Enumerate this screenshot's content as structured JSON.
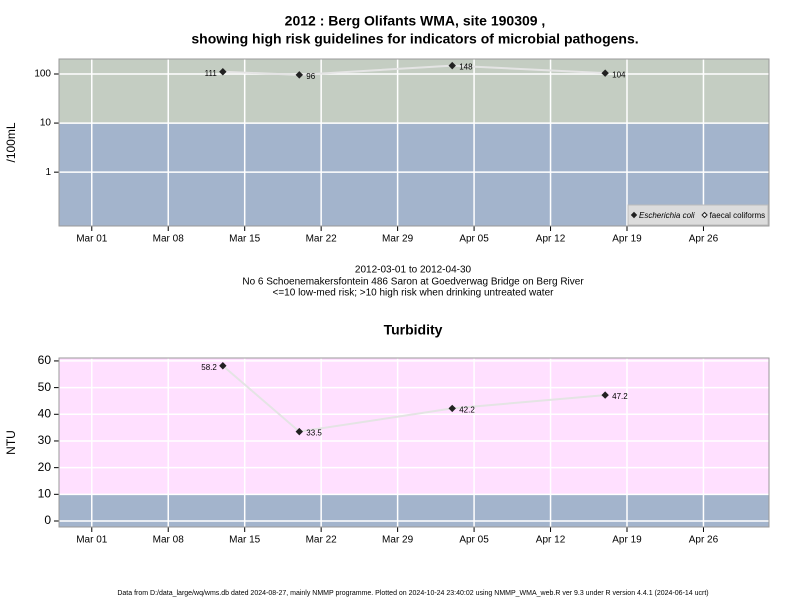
{
  "title": [
    "2012 : Berg Olifants WMA, site 190309 ,",
    "showing high risk guidelines for indicators of microbial pathogens."
  ],
  "notes": [
    "2012-03-01 to 2012-04-30",
    "No 6 Schoenemakersfontein 486 Saron at Goedverwag Bridge on Berg River",
    "<=10 low-med risk; >10 high risk when drinking untreated water"
  ],
  "footer": "Data from D:/data_large/wq/wms.db dated 2024-08-27, mainly NMMP programme. Plotted on 2024-10-24 23:40:02 using NMMP_WMA_web.R ver 9.3 under R version 4.4.1 (2024-06-14 ucrt)",
  "chart_data": [
    {
      "type": "line",
      "y_label": "/100mL",
      "log_scale": true,
      "grid": true,
      "legend": "bottom-right",
      "threshold": 10,
      "above_color": "#c4cdc2",
      "below_color": "#a3b4cc",
      "x": [
        "2012-03-13",
        "2012-03-20",
        "2012-04-03",
        "2012-04-17"
      ],
      "series": [
        {
          "name": "Escherichia coli",
          "color": "#222222",
          "values": [
            111,
            96,
            148,
            104
          ]
        },
        {
          "name": "faecal coliforms",
          "color": "#222222",
          "values": [
            null,
            null,
            null,
            null
          ]
        }
      ],
      "xlim": [
        "2012-02-27",
        "2012-05-02"
      ],
      "xticks": [
        {
          "value": "2012-03-01",
          "label": "Mar 01"
        },
        {
          "value": "2012-03-08",
          "label": "Mar 08"
        },
        {
          "value": "2012-03-15",
          "label": "Mar 15"
        },
        {
          "value": "2012-03-22",
          "label": "Mar 22"
        },
        {
          "value": "2012-03-29",
          "label": "Mar 29"
        },
        {
          "value": "2012-04-05",
          "label": "Apr 05"
        },
        {
          "value": "2012-04-12",
          "label": "Apr 12"
        },
        {
          "value": "2012-04-19",
          "label": "Apr 19"
        },
        {
          "value": "2012-04-26",
          "label": "Apr 26"
        }
      ],
      "ylim": [
        0.08,
        202
      ],
      "yticks": [
        1,
        10,
        100
      ]
    },
    {
      "type": "line",
      "title": "Turbidity",
      "y_label": "NTU",
      "log_scale": false,
      "grid": true,
      "threshold": 10,
      "above_color": "#ffe0ff",
      "below_color": "#a3b4cc",
      "x": [
        "2012-03-13",
        "2012-03-20",
        "2012-04-03",
        "2012-04-17"
      ],
      "series": [
        {
          "color": "#222222",
          "values": [
            58.2,
            33.5,
            42.2,
            47.2
          ]
        }
      ],
      "xlim": [
        "2012-02-27",
        "2012-05-02"
      ],
      "xticks": [
        {
          "value": "2012-03-01",
          "label": "Mar 01"
        },
        {
          "value": "2012-03-08",
          "label": "Mar 08"
        },
        {
          "value": "2012-03-15",
          "label": "Mar 15"
        },
        {
          "value": "2012-03-22",
          "label": "Mar 22"
        },
        {
          "value": "2012-03-29",
          "label": "Mar 29"
        },
        {
          "value": "2012-04-05",
          "label": "Apr 05"
        },
        {
          "value": "2012-04-12",
          "label": "Apr 12"
        },
        {
          "value": "2012-04-19",
          "label": "Apr 19"
        },
        {
          "value": "2012-04-26",
          "label": "Apr 26"
        }
      ],
      "ylim": [
        -2.25,
        61.1
      ],
      "yticks": [
        0,
        10,
        20,
        30,
        40,
        50,
        60
      ]
    }
  ]
}
